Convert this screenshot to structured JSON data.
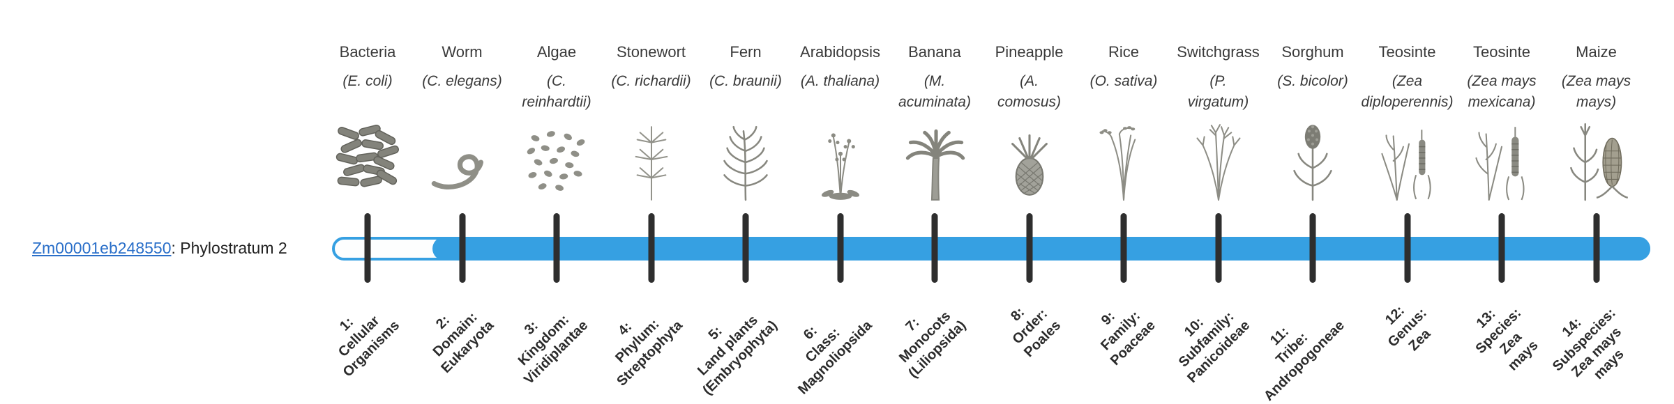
{
  "gene": {
    "id": "Zm00001eb248550",
    "suffix": ": Phylostratum 2",
    "phylostratum": 2
  },
  "track": {
    "color": "#36a0e2",
    "tick_color": "#2e2e2e",
    "filled_from_stratum": 2,
    "total_strata": 14
  },
  "organisms": [
    {
      "name": "Bacteria",
      "sci": "(E. coli)",
      "icon": "bacteria-icon",
      "stratum_label": "1:\nCellular\nOrganisms"
    },
    {
      "name": "Worm",
      "sci": "(C. elegans)",
      "icon": "worm-icon",
      "stratum_label": "2:\nDomain:\nEukaryota"
    },
    {
      "name": "Algae",
      "sci": "(C.\nreinhardtii)",
      "icon": "algae-icon",
      "stratum_label": "3:\nKingdom:\nViridiplantae"
    },
    {
      "name": "Stonewort",
      "sci": "(C. richardii)",
      "icon": "stonewort-icon",
      "stratum_label": "4:\nPhylum:\nStreptophyta"
    },
    {
      "name": "Fern",
      "sci": "(C. braunii)",
      "icon": "fern-icon",
      "stratum_label": "5:\nLand plants\n(Embryophyta)"
    },
    {
      "name": "Arabidopsis",
      "sci": "(A. thaliana)",
      "icon": "arabidopsis-icon",
      "stratum_label": "6:\nClass:\nMagnoliopsida"
    },
    {
      "name": "Banana",
      "sci": "(M.\nacuminata)",
      "icon": "banana-icon",
      "stratum_label": "7:\nMonocots\n(Liliopsida)"
    },
    {
      "name": "Pineapple",
      "sci": "(A.\ncomosus)",
      "icon": "pineapple-icon",
      "stratum_label": "8:\nOrder:\nPoales"
    },
    {
      "name": "Rice",
      "sci": "(O. sativa)",
      "icon": "rice-icon",
      "stratum_label": "9:\nFamily:\nPoaceae"
    },
    {
      "name": "Switchgrass",
      "sci": "(P.\nvirgatum)",
      "icon": "switchgrass-icon",
      "stratum_label": "10:\nSubfamily:\nPanicoideae"
    },
    {
      "name": "Sorghum",
      "sci": "(S. bicolor)",
      "icon": "sorghum-icon",
      "stratum_label": "11:\nTribe:\nAndropogoneae"
    },
    {
      "name": "Teosinte",
      "sci": "(Zea\ndiploperennis)",
      "icon": "teosinte-icon",
      "stratum_label": "12:\nGenus:\nZea"
    },
    {
      "name": "Teosinte",
      "sci": "(Zea mays\nmexicana)",
      "icon": "teosinte2-icon",
      "stratum_label": "13:\nSpecies:\nZea\nmays"
    },
    {
      "name": "Maize",
      "sci": "(Zea mays\nmays)",
      "icon": "maize-icon",
      "stratum_label": "14:\nSubspecies:\nZea mays\nmays"
    }
  ]
}
